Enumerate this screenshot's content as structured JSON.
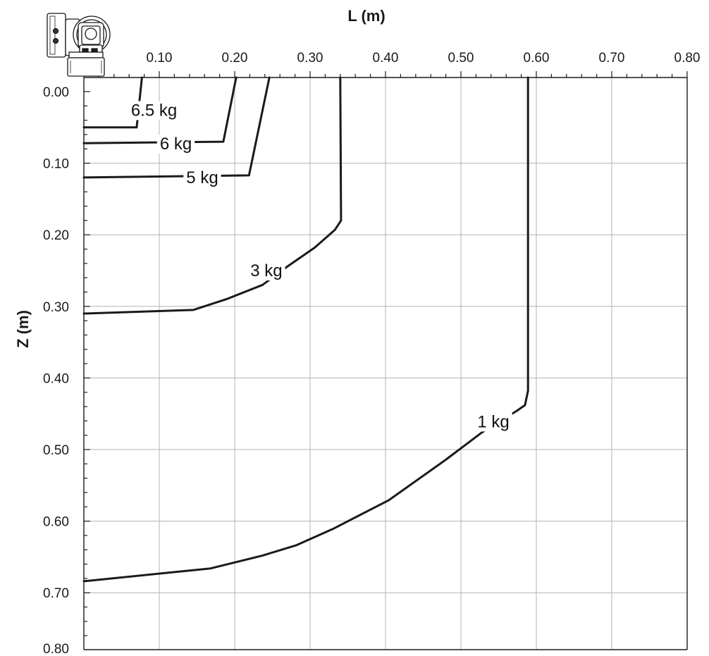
{
  "chart_data": {
    "type": "line",
    "xlabel": "L (m)",
    "ylabel": "Z (m)",
    "xlim": [
      0.0,
      0.8
    ],
    "ylim": [
      0.0,
      0.8
    ],
    "y_inverted": true,
    "x_axis_position": "top",
    "x_ticks": [
      "0.10",
      "0.20",
      "0.30",
      "0.40",
      "0.50",
      "0.60",
      "0.70",
      "0.80"
    ],
    "y_ticks": [
      "0.00",
      "0.10",
      "0.20",
      "0.30",
      "0.40",
      "0.50",
      "0.60",
      "0.70",
      "0.80"
    ],
    "grid": true,
    "series": [
      {
        "name": "6.5 kg",
        "points": [
          [
            0.077,
            -0.02
          ],
          [
            0.07,
            0.05
          ],
          [
            0.0,
            0.05
          ]
        ],
        "label_at": [
          0.093,
          0.026
        ]
      },
      {
        "name": "6 kg",
        "points": [
          [
            0.202,
            -0.02
          ],
          [
            0.185,
            0.07
          ],
          [
            0.0,
            0.072
          ]
        ],
        "label_at": [
          0.122,
          0.073
        ]
      },
      {
        "name": "5 kg",
        "points": [
          [
            0.246,
            -0.02
          ],
          [
            0.219,
            0.117
          ],
          [
            0.0,
            0.12
          ]
        ],
        "label_at": [
          0.157,
          0.12
        ]
      },
      {
        "name": "3 kg",
        "points": [
          [
            0.34,
            -0.02
          ],
          [
            0.341,
            0.18
          ],
          [
            0.333,
            0.193
          ],
          [
            0.306,
            0.218
          ],
          [
            0.269,
            0.245
          ],
          [
            0.237,
            0.27
          ],
          [
            0.189,
            0.29
          ],
          [
            0.145,
            0.305
          ],
          [
            0.0,
            0.31
          ]
        ],
        "label_at": [
          0.242,
          0.25
        ]
      },
      {
        "name": "1 kg",
        "points": [
          [
            0.589,
            -0.02
          ],
          [
            0.589,
            0.418
          ],
          [
            0.585,
            0.438
          ],
          [
            0.574,
            0.446
          ],
          [
            0.528,
            0.476
          ],
          [
            0.479,
            0.515
          ],
          [
            0.404,
            0.571
          ],
          [
            0.33,
            0.611
          ],
          [
            0.281,
            0.634
          ],
          [
            0.237,
            0.648
          ],
          [
            0.168,
            0.666
          ],
          [
            0.0,
            0.684
          ]
        ],
        "label_at": [
          0.543,
          0.461
        ]
      }
    ]
  },
  "robot_icon": "robot-icon"
}
